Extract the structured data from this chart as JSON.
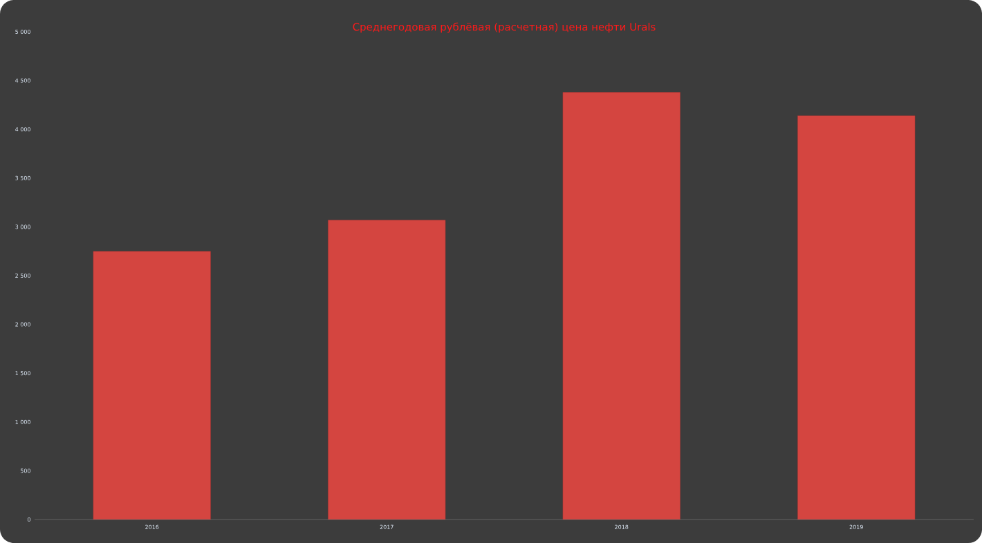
{
  "chart_data": {
    "type": "bar",
    "title": "Среднегодовая рублёвая (расчетная) цена нефти Urals",
    "categories": [
      "2016",
      "2017",
      "2018",
      "2019"
    ],
    "values": [
      2750,
      3070,
      4380,
      4140
    ],
    "color": "#d44540",
    "ylim": [
      0,
      5000
    ],
    "yticks": [
      0,
      500,
      {
        "value": 1000,
        "label": "1 000"
      },
      {
        "value": 1500,
        "label": "1 500"
      },
      {
        "value": 2000,
        "label": "2 000"
      },
      {
        "value": 2500,
        "label": "2 500"
      },
      {
        "value": 3000,
        "label": "3 000"
      },
      {
        "value": 3500,
        "label": "3 500"
      },
      {
        "value": 4000,
        "label": "4 000"
      },
      {
        "value": 4500,
        "label": "4 500"
      },
      {
        "value": 5000,
        "label": "5 000"
      }
    ]
  }
}
